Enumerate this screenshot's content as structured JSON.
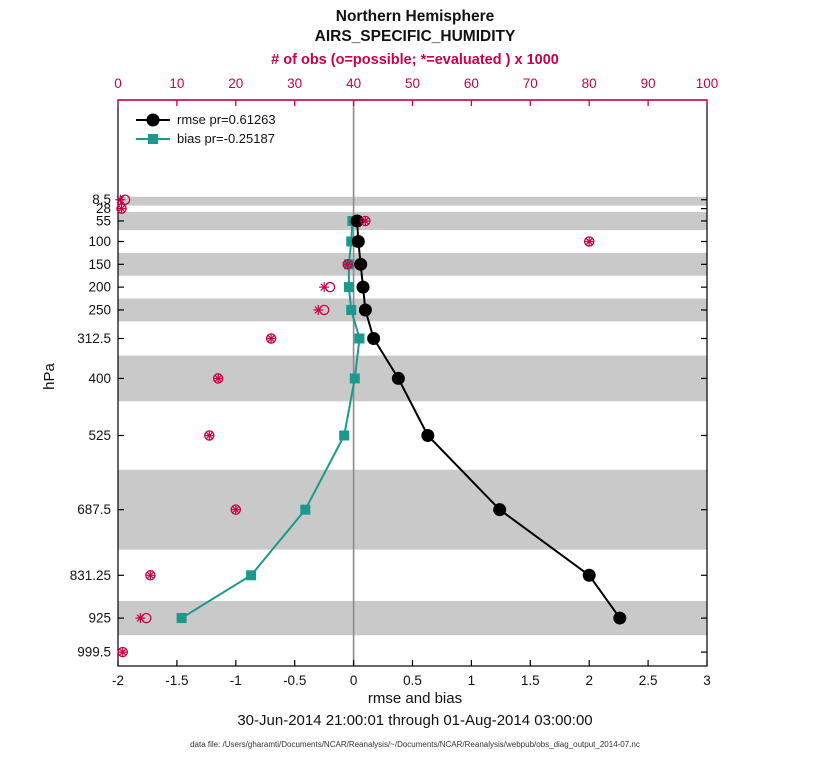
{
  "chart_data": {
    "type": "line",
    "title": "Northern Hemisphere",
    "subtitle": "AIRS_SPECIFIC_HUMIDITY",
    "caption": "30-Jun-2014 21:00:01 through 01-Aug-2014 03:00:00",
    "datafile": "data file: /Users/gharamti/Documents/NCAR/Reanalysis/~/Documents/NCAR/Reanalysis/webpub/obs_diag_output_2014-07.nc",
    "colors": {
      "obs": "#cc0044",
      "rmse": "#000000",
      "bias": "#1a998c",
      "band": "#c9c9c9",
      "zero_line": "#8c8c8c",
      "axis": "#000000"
    },
    "top_axis": {
      "label": "# of obs (o=possible; *=evaluated ) x 1000",
      "min": 0,
      "max": 100,
      "ticks": [
        0,
        10,
        20,
        30,
        40,
        50,
        60,
        70,
        80,
        90,
        100
      ]
    },
    "bottom_axis": {
      "label": "rmse and bias",
      "min": -2,
      "max": 3,
      "ticks": [
        -2,
        -1.5,
        -1,
        -0.5,
        0,
        0.5,
        1,
        1.5,
        2,
        2.5,
        3
      ],
      "zero_line": 0
    },
    "left_axis": {
      "label": "hPa",
      "direction": "reversed",
      "min": -210,
      "max": 1030,
      "ticks": [
        8.5,
        28,
        55,
        100,
        150,
        200,
        250,
        312.5,
        400,
        525,
        687.5,
        831.25,
        925,
        999.5
      ]
    },
    "shaded_layers": [
      [
        2,
        21.5
      ],
      [
        35,
        75
      ],
      [
        125,
        175
      ],
      [
        225,
        275
      ],
      [
        350,
        450
      ],
      [
        600,
        775
      ],
      [
        887.5,
        962.5
      ]
    ],
    "series": [
      {
        "name": "rmse pr=0.61263",
        "marker": "circle",
        "color_key": "rmse",
        "points": [
          {
            "level": 55,
            "value": 0.03
          },
          {
            "level": 100,
            "value": 0.04
          },
          {
            "level": 150,
            "value": 0.06
          },
          {
            "level": 200,
            "value": 0.08
          },
          {
            "level": 250,
            "value": 0.1
          },
          {
            "level": 312.5,
            "value": 0.17
          },
          {
            "level": 400,
            "value": 0.38
          },
          {
            "level": 525,
            "value": 0.63
          },
          {
            "level": 687.5,
            "value": 1.24
          },
          {
            "level": 831.25,
            "value": 2.0
          },
          {
            "level": 925,
            "value": 2.26
          }
        ]
      },
      {
        "name": "bias pr=-0.25187",
        "marker": "square",
        "color_key": "bias",
        "points": [
          {
            "level": 55,
            "value": -0.01
          },
          {
            "level": 100,
            "value": -0.02
          },
          {
            "level": 150,
            "value": -0.04
          },
          {
            "level": 200,
            "value": -0.04
          },
          {
            "level": 250,
            "value": -0.02
          },
          {
            "level": 312.5,
            "value": 0.05
          },
          {
            "level": 400,
            "value": 0.01
          },
          {
            "level": 525,
            "value": -0.08
          },
          {
            "level": 687.5,
            "value": -0.41
          },
          {
            "level": 831.25,
            "value": -0.87
          },
          {
            "level": 925,
            "value": -1.46
          }
        ]
      }
    ],
    "obs_counts": {
      "units": "x 1000",
      "points": [
        {
          "level": 8.5,
          "possible": 1.2,
          "evaluated": 0.4
        },
        {
          "level": 28,
          "possible": 0.6,
          "evaluated": 0.6
        },
        {
          "level": 55,
          "possible": 42,
          "evaluated": 42
        },
        {
          "level": 100,
          "possible": 80,
          "evaluated": 80
        },
        {
          "level": 150,
          "possible": 39,
          "evaluated": 39
        },
        {
          "level": 200,
          "possible": 36,
          "evaluated": 35
        },
        {
          "level": 250,
          "possible": 35,
          "evaluated": 34
        },
        {
          "level": 312.5,
          "possible": 26,
          "evaluated": 26
        },
        {
          "level": 400,
          "possible": 17,
          "evaluated": 17
        },
        {
          "level": 525,
          "possible": 15.5,
          "evaluated": 15.5
        },
        {
          "level": 687.5,
          "possible": 20,
          "evaluated": 20
        },
        {
          "level": 831.25,
          "possible": 5.5,
          "evaluated": 5.5
        },
        {
          "level": 925,
          "possible": 4.8,
          "evaluated": 3.8
        },
        {
          "level": 999.5,
          "possible": 0.8,
          "evaluated": 0.8
        }
      ]
    }
  }
}
